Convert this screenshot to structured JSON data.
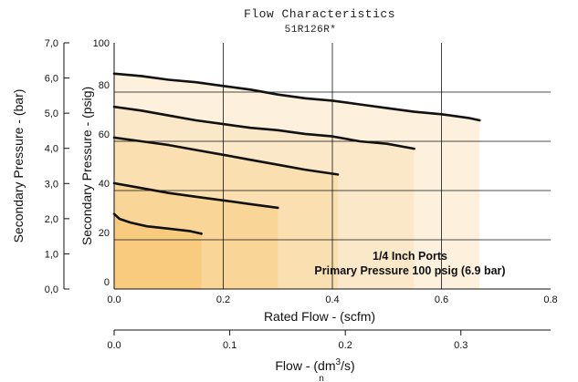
{
  "chart_data": {
    "type": "area",
    "title": "Flow Characteristics",
    "subtitle": "51R126R*",
    "xlabel": "Rated Flow - (scfm)",
    "ylabel": "Secondary Pressure - (psig)",
    "xlim": [
      0,
      0.8
    ],
    "ylim": [
      0,
      100
    ],
    "x_ticks": [
      "0.0",
      "0.2",
      "0.4",
      "0.6",
      "0.8"
    ],
    "y_ticks": [
      "0",
      "20",
      "40",
      "60",
      "80",
      "100"
    ],
    "grid": true,
    "secondary_y": {
      "label": "Secondary Pressure - (bar)",
      "lim": [
        0,
        7
      ],
      "ticks": [
        "0,0",
        "1,0",
        "2,0",
        "3,0",
        "4,0",
        "5,0",
        "6,0",
        "7,0"
      ]
    },
    "secondary_x": {
      "label": "Flow - (dm³/s)",
      "label_prefix": "Flow - (dm",
      "label_sup": "3",
      "label_suffix": "/s)",
      "label_sub": "n",
      "lim": [
        0,
        0.3776
      ],
      "ticks": [
        "0.0",
        "0.1",
        "0.2",
        "0.3"
      ]
    },
    "annotation": [
      "1/4 Inch Ports",
      "Primary Pressure 100 psig (6.9 bar)"
    ],
    "colors": {
      "band": [
        "#f8cb7e",
        "#f9d597",
        "#fadfb0",
        "#fbe8c8",
        "#fdf1de"
      ],
      "grid": "#111111",
      "curve": "#111111"
    },
    "series": [
      {
        "x": [
          0,
          0.01,
          0.03,
          0.06,
          0.1,
          0.14,
          0.16
        ],
        "y": [
          30.5,
          28.5,
          27,
          25.5,
          24.5,
          23.5,
          22.5
        ]
      },
      {
        "x": [
          0,
          0.05,
          0.1,
          0.15,
          0.2,
          0.25,
          0.3
        ],
        "y": [
          43,
          41,
          39,
          37.5,
          36,
          34.5,
          33
        ]
      },
      {
        "x": [
          0,
          0.05,
          0.1,
          0.15,
          0.2,
          0.25,
          0.3,
          0.35,
          0.41
        ],
        "y": [
          61.5,
          60,
          58.5,
          56.5,
          54.5,
          52.5,
          50.5,
          48.5,
          46.5
        ]
      },
      {
        "x": [
          0,
          0.05,
          0.1,
          0.15,
          0.2,
          0.25,
          0.3,
          0.35,
          0.4,
          0.45,
          0.5,
          0.55
        ],
        "y": [
          74,
          72.5,
          70.5,
          68.5,
          67,
          65.5,
          64.5,
          63,
          62,
          60,
          59,
          57
        ]
      },
      {
        "x": [
          0,
          0.05,
          0.1,
          0.15,
          0.2,
          0.25,
          0.3,
          0.35,
          0.4,
          0.45,
          0.5,
          0.55,
          0.6,
          0.65,
          0.67
        ],
        "y": [
          87.5,
          86.5,
          85,
          84,
          82.5,
          81,
          79,
          77.5,
          76.5,
          75,
          73.5,
          72,
          71,
          69.5,
          68.5
        ]
      }
    ]
  }
}
